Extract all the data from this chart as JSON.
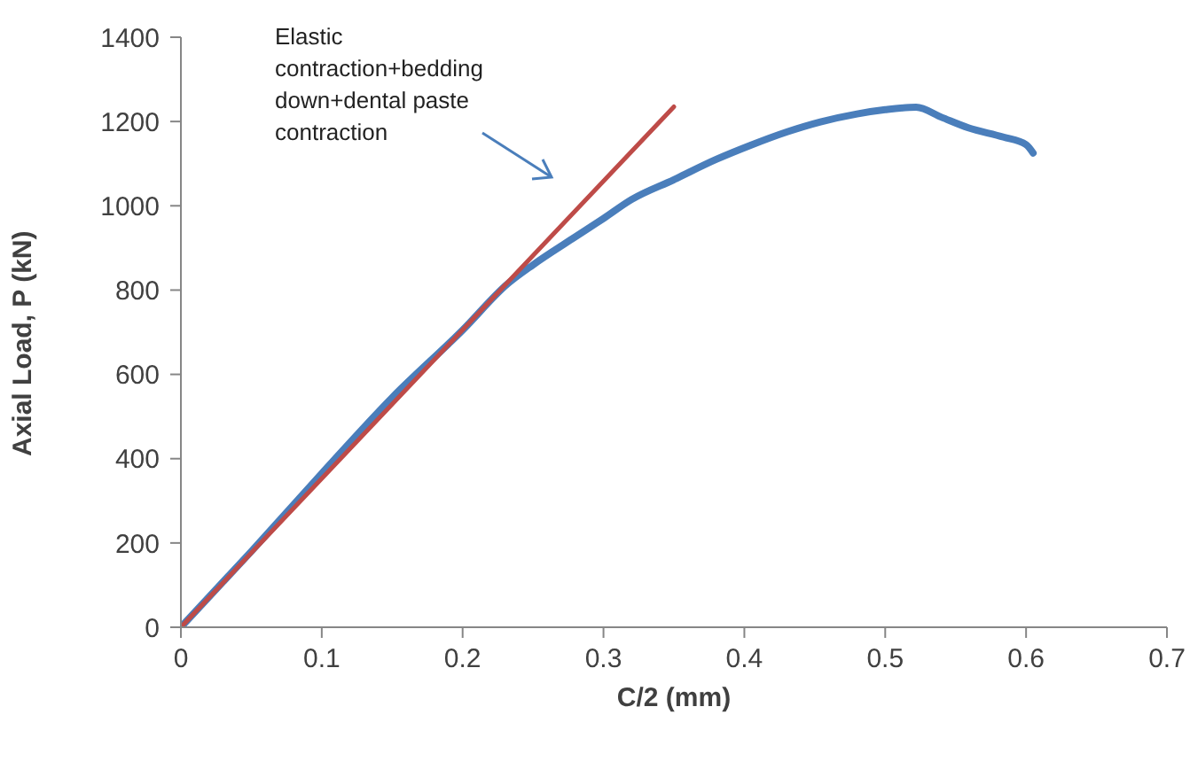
{
  "chart_data": {
    "type": "line",
    "xlabel": "C/2 (mm)",
    "ylabel": "Axial Load, P (kN)",
    "xlim": [
      0,
      0.7
    ],
    "xticks": [
      0,
      0.1,
      0.2,
      0.3,
      0.4,
      0.5,
      0.6,
      0.7
    ],
    "ylim": [
      0,
      1400
    ],
    "yticks": [
      0,
      200,
      400,
      600,
      800,
      1000,
      1200,
      1400
    ],
    "annotations": [
      "Elastic contraction+bedding down+dental paste contraction"
    ],
    "series": [
      {
        "color": "#4a7ebb",
        "x": [
          0,
          0.05,
          0.1,
          0.15,
          0.2,
          0.232,
          0.25,
          0.278,
          0.3,
          0.32,
          0.35,
          0.38,
          0.404,
          0.43,
          0.454,
          0.48,
          0.5,
          0.522,
          0.54,
          0.559,
          0.584,
          0.6,
          0.605
        ],
        "values": [
          0,
          180,
          365,
          545,
          705,
          815,
          860,
          922,
          970,
          1015,
          1062,
          1110,
          1143,
          1175,
          1199,
          1218,
          1228,
          1234,
          1210,
          1185,
          1163,
          1145,
          1125
        ]
      },
      {
        "color": "#be4b48",
        "x": [
          0,
          0.35
        ],
        "values": [
          0,
          1235
        ]
      }
    ]
  }
}
